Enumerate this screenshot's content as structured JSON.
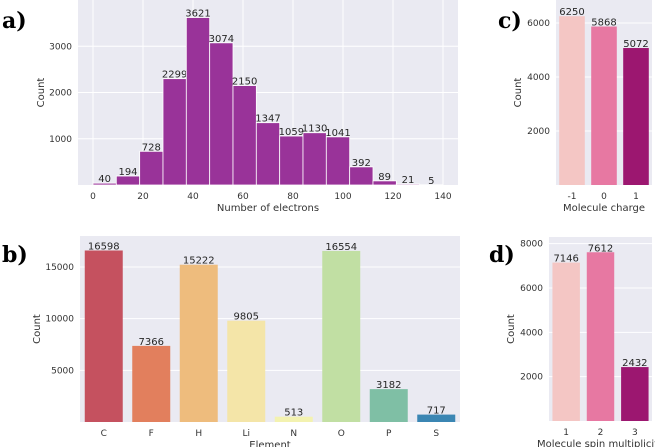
{
  "chart_data": [
    {
      "id": "a",
      "panel_label": "a)",
      "type": "bar",
      "subtype": "histogram",
      "bin_edges": [
        0,
        9.33,
        18.67,
        28,
        37.33,
        46.67,
        56,
        65.33,
        74.67,
        84,
        93.33,
        102.67,
        112,
        121.33,
        130.67,
        140
      ],
      "values": [
        40,
        194,
        728,
        2299,
        3621,
        3074,
        2150,
        1347,
        1059,
        1130,
        1041,
        392,
        89,
        21,
        5
      ],
      "data_labels": [
        "40",
        "194",
        "728",
        "2299",
        "3621",
        "3074",
        "2150",
        "1347",
        "1059",
        "1130",
        "1041",
        "392",
        "89",
        "21",
        "5"
      ],
      "color": "#993399",
      "xlabel": "Number of electrons",
      "ylabel": "Count",
      "xticks": [
        "0",
        "20",
        "40",
        "60",
        "80",
        "100",
        "120",
        "140"
      ],
      "xtick_values": [
        0,
        20,
        40,
        60,
        80,
        100,
        120,
        140
      ],
      "yticks": [
        "1000",
        "2000",
        "3000"
      ],
      "ytick_values": [
        1000,
        2000,
        3000
      ],
      "xlim": [
        -6,
        146
      ],
      "ylim": [
        0,
        4000
      ],
      "grid": true
    },
    {
      "id": "b",
      "panel_label": "b)",
      "type": "bar",
      "categories": [
        "C",
        "F",
        "H",
        "Li",
        "N",
        "O",
        "P",
        "S"
      ],
      "values": [
        16598,
        7366,
        15222,
        9805,
        513,
        16554,
        3182,
        717
      ],
      "data_labels": [
        "16598",
        "7366",
        "15222",
        "9805",
        "513",
        "16554",
        "3182",
        "717"
      ],
      "colors": [
        "#c5515f",
        "#e27f5d",
        "#eebc7d",
        "#f4e5a8",
        "#f3f2b0",
        "#c1dfa3",
        "#7fbfa5",
        "#3b86b3"
      ],
      "xlabel": "Element",
      "ylabel": "Count",
      "yticks": [
        "5000",
        "10000",
        "15000"
      ],
      "ytick_values": [
        5000,
        10000,
        15000
      ],
      "ylim": [
        0,
        18000
      ],
      "grid": true
    },
    {
      "id": "c",
      "panel_label": "c)",
      "type": "bar",
      "categories": [
        "-1",
        "0",
        "1"
      ],
      "values": [
        6250,
        5868,
        5072
      ],
      "data_labels": [
        "6250",
        "5868",
        "5072"
      ],
      "colors": [
        "#f4c6c4",
        "#e778a2",
        "#9c1770"
      ],
      "xlabel": "Molecule charge",
      "ylabel": "Count",
      "yticks": [
        "2000",
        "4000",
        "6000"
      ],
      "ytick_values": [
        2000,
        4000,
        6000
      ],
      "ylim": [
        0,
        6850
      ],
      "grid": true
    },
    {
      "id": "d",
      "panel_label": "d)",
      "type": "bar",
      "categories": [
        "1",
        "2",
        "3"
      ],
      "values": [
        7146,
        7612,
        2432
      ],
      "data_labels": [
        "7146",
        "7612",
        "2432"
      ],
      "colors": [
        "#f4c6c4",
        "#e778a2",
        "#9c1770"
      ],
      "xlabel": "Molecule spin multiplicity",
      "ylabel": "Count",
      "yticks": [
        "2000",
        "4000",
        "6000",
        "8000"
      ],
      "ytick_values": [
        2000,
        4000,
        6000,
        8000
      ],
      "ylim": [
        0,
        8300
      ],
      "grid": true
    }
  ]
}
